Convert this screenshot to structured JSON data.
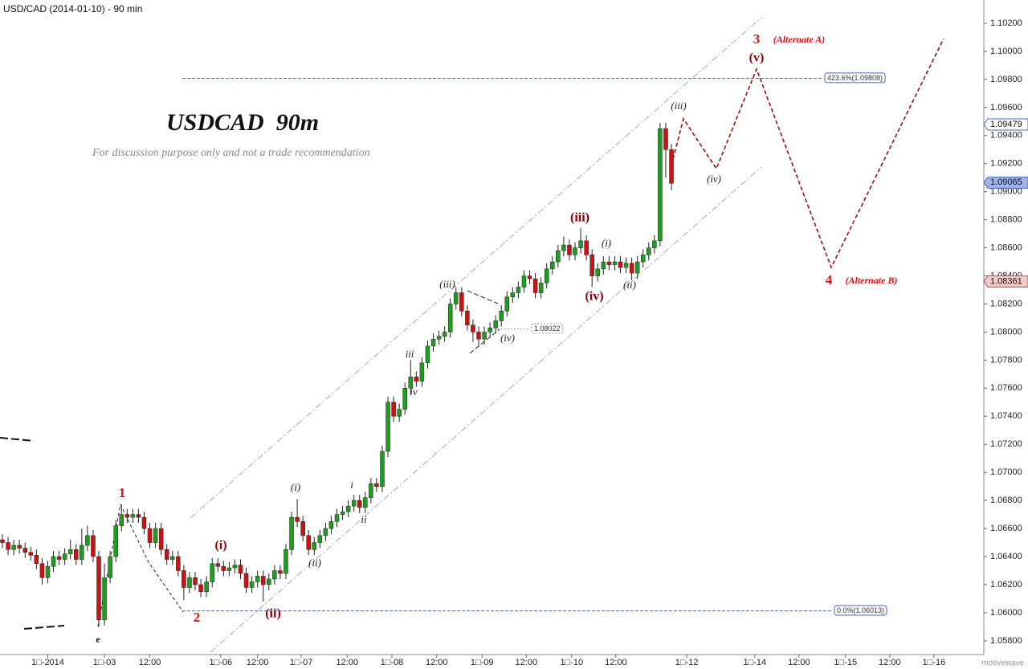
{
  "chart_data": {
    "type": "candlestick",
    "title": "USD/CAD (2014-01-10) - 90 min",
    "heading": "USDCAD  90m",
    "subtitle": "For discussion purpose only and not a trade recommendation",
    "watermark": "motivewave",
    "up_color": "#1e9e1e",
    "down_color": "#cc1111",
    "x": [
      0,
      1,
      2,
      3,
      4,
      5,
      6,
      7,
      8,
      9,
      10,
      11,
      12,
      13,
      14,
      15,
      16,
      17,
      18,
      19,
      20,
      21,
      22,
      23,
      24,
      25,
      26,
      27,
      28,
      29,
      30,
      31,
      32,
      33,
      34,
      35,
      36,
      37,
      38,
      39,
      40,
      41,
      42,
      43,
      44,
      45,
      46,
      47,
      48,
      49,
      50,
      51,
      52,
      53,
      54,
      55,
      56,
      57,
      58,
      59,
      60,
      61,
      62,
      63,
      64,
      65,
      66,
      67,
      68,
      69,
      70,
      71,
      72,
      73,
      74,
      75,
      76,
      77,
      78,
      79,
      80,
      81,
      82,
      83,
      84,
      85,
      86,
      87,
      88,
      89,
      90,
      91,
      92,
      93,
      94,
      95,
      96,
      97,
      98,
      99,
      100,
      101,
      102,
      103,
      104,
      105,
      106,
      107,
      108,
      109,
      110,
      111,
      112,
      113,
      114,
      115,
      116,
      117,
      118
    ],
    "open": [
      1.0652,
      1.065,
      1.0645,
      1.0648,
      1.0646,
      1.0643,
      1.0641,
      1.0635,
      1.0625,
      1.0633,
      1.064,
      1.0638,
      1.0642,
      1.0645,
      1.0638,
      1.0648,
      1.0655,
      1.064,
      1.0595,
      1.0625,
      1.064,
      1.0662,
      1.067,
      1.0668,
      1.067,
      1.0668,
      1.066,
      1.065,
      1.066,
      1.0645,
      1.0638,
      1.064,
      1.063,
      1.0618,
      1.0625,
      1.062,
      1.0615,
      1.0622,
      1.0635,
      1.0633,
      1.063,
      1.0632,
      1.0634,
      1.0628,
      1.0618,
      1.0622,
      1.0626,
      1.062,
      1.0624,
      1.063,
      1.0628,
      1.0645,
      1.0668,
      1.0665,
      1.0655,
      1.0645,
      1.065,
      1.0655,
      1.066,
      1.0665,
      1.067,
      1.0672,
      1.0676,
      1.068,
      1.0675,
      1.0682,
      1.0692,
      1.069,
      1.0715,
      1.075,
      1.074,
      1.0745,
      1.076,
      1.0768,
      1.0765,
      1.0778,
      1.079,
      1.0795,
      1.0797,
      1.08,
      1.082,
      1.0828,
      1.0815,
      1.0805,
      1.08,
      1.0795,
      1.08,
      1.0803,
      1.0808,
      1.0815,
      1.0825,
      1.0828,
      1.0832,
      1.084,
      1.0838,
      1.0828,
      1.0835,
      1.0845,
      1.085,
      1.0858,
      1.0862,
      1.0855,
      1.086,
      1.0865,
      1.0855,
      1.084,
      1.0845,
      1.085,
      1.0848,
      1.085,
      1.0846,
      1.0849,
      1.0842,
      1.085,
      1.0855,
      1.086,
      1.0865,
      1.0945,
      1.093
    ],
    "high": [
      1.0656,
      1.0654,
      1.0652,
      1.0652,
      1.065,
      1.0647,
      1.0645,
      1.0639,
      1.0637,
      1.0644,
      1.0644,
      1.0646,
      1.0652,
      1.0649,
      1.066,
      1.0662,
      1.0659,
      1.0644,
      1.0635,
      1.0644,
      1.0666,
      1.0677,
      1.0674,
      1.0674,
      1.0674,
      1.0672,
      1.0664,
      1.0664,
      1.0664,
      1.0649,
      1.0644,
      1.0644,
      1.0634,
      1.0629,
      1.0629,
      1.0624,
      1.0626,
      1.0639,
      1.0639,
      1.0637,
      1.0636,
      1.0638,
      1.0638,
      1.0632,
      1.0626,
      1.063,
      1.063,
      1.0628,
      1.0634,
      1.0634,
      1.0649,
      1.0672,
      1.0681,
      1.0669,
      1.0659,
      1.0654,
      1.0659,
      1.0664,
      1.0669,
      1.0674,
      1.0676,
      1.068,
      1.0684,
      1.0684,
      1.0686,
      1.0696,
      1.0696,
      1.0719,
      1.0754,
      1.0754,
      1.0749,
      1.0764,
      1.078,
      1.0772,
      1.0782,
      1.0794,
      1.0799,
      1.0801,
      1.0804,
      1.0824,
      1.0832,
      1.0832,
      1.0819,
      1.0809,
      1.0804,
      1.0804,
      1.0807,
      1.0812,
      1.0819,
      1.0829,
      1.0832,
      1.0836,
      1.0844,
      1.0844,
      1.0842,
      1.0839,
      1.0849,
      1.0854,
      1.0862,
      1.0868,
      1.0866,
      1.0864,
      1.0874,
      1.0869,
      1.0859,
      1.0849,
      1.0854,
      1.0854,
      1.0854,
      1.0854,
      1.0853,
      1.0853,
      1.0854,
      1.0859,
      1.0864,
      1.0869,
      1.0949,
      1.0949,
      1.0934
    ],
    "low": [
      1.0646,
      1.0641,
      1.0641,
      1.0642,
      1.0639,
      1.0637,
      1.0631,
      1.062,
      1.0621,
      1.0629,
      1.0634,
      1.0634,
      1.0638,
      1.0634,
      1.0634,
      1.0644,
      1.0636,
      1.059,
      1.0591,
      1.0621,
      1.0636,
      1.0658,
      1.0664,
      1.0664,
      1.0664,
      1.0656,
      1.0646,
      1.0646,
      1.0641,
      1.0634,
      1.0634,
      1.0626,
      1.0609,
      1.0614,
      1.0616,
      1.0611,
      1.0611,
      1.0618,
      1.0629,
      1.0626,
      1.0626,
      1.0628,
      1.0624,
      1.0614,
      1.0614,
      1.0618,
      1.0608,
      1.0616,
      1.062,
      1.0624,
      1.0624,
      1.0641,
      1.0661,
      1.0651,
      1.0641,
      1.0641,
      1.0646,
      1.0651,
      1.0656,
      1.0661,
      1.0666,
      1.0668,
      1.0672,
      1.0671,
      1.0671,
      1.0678,
      1.0686,
      1.0686,
      1.0711,
      1.0736,
      1.0736,
      1.0741,
      1.0756,
      1.0761,
      1.0761,
      1.0774,
      1.0786,
      1.0791,
      1.0793,
      1.0796,
      1.0816,
      1.0811,
      1.0801,
      1.0793,
      1.079,
      1.0791,
      1.0796,
      1.0799,
      1.0804,
      1.0811,
      1.0821,
      1.0824,
      1.0828,
      1.0834,
      1.0824,
      1.0824,
      1.0831,
      1.0841,
      1.0846,
      1.0854,
      1.0851,
      1.0851,
      1.0856,
      1.0851,
      1.0832,
      1.0836,
      1.0841,
      1.0844,
      1.0844,
      1.0842,
      1.0842,
      1.0837,
      1.0838,
      1.0846,
      1.0851,
      1.0856,
      1.0861,
      1.091,
      1.0901
    ],
    "close": [
      1.065,
      1.0645,
      1.0648,
      1.0646,
      1.0643,
      1.0641,
      1.0635,
      1.0625,
      1.0633,
      1.064,
      1.0638,
      1.0642,
      1.0645,
      1.0638,
      1.0648,
      1.0655,
      1.064,
      1.0595,
      1.0625,
      1.064,
      1.0662,
      1.067,
      1.0668,
      1.067,
      1.0668,
      1.066,
      1.065,
      1.066,
      1.0645,
      1.0638,
      1.064,
      1.063,
      1.0618,
      1.0625,
      1.062,
      1.0615,
      1.0622,
      1.0635,
      1.0633,
      1.063,
      1.0632,
      1.0634,
      1.0628,
      1.0618,
      1.0622,
      1.0626,
      1.062,
      1.0624,
      1.063,
      1.0628,
      1.0645,
      1.0668,
      1.0665,
      1.0655,
      1.0645,
      1.065,
      1.0655,
      1.066,
      1.0665,
      1.067,
      1.0672,
      1.0676,
      1.068,
      1.0675,
      1.0682,
      1.0692,
      1.069,
      1.0715,
      1.075,
      1.074,
      1.0745,
      1.076,
      1.0768,
      1.0765,
      1.0778,
      1.079,
      1.0795,
      1.0797,
      1.08,
      1.082,
      1.0828,
      1.0815,
      1.0805,
      1.08,
      1.0795,
      1.08,
      1.0803,
      1.0808,
      1.0815,
      1.0825,
      1.0828,
      1.0832,
      1.084,
      1.0838,
      1.0828,
      1.0835,
      1.0845,
      1.085,
      1.0858,
      1.0862,
      1.0855,
      1.086,
      1.0865,
      1.0855,
      1.084,
      1.0845,
      1.085,
      1.0848,
      1.085,
      1.0846,
      1.0849,
      1.0842,
      1.085,
      1.0855,
      1.086,
      1.0865,
      1.0945,
      1.093,
      1.0906
    ],
    "xlim": [
      -0.425,
      173.1
    ],
    "xticks": [
      {
        "value": 8,
        "label": "1□-2014"
      },
      {
        "value": 18,
        "label": "1□-03"
      },
      {
        "value": 26,
        "label": "12:00"
      },
      {
        "value": 38.5,
        "label": "1□-06"
      },
      {
        "value": 45,
        "label": "12:00"
      },
      {
        "value": 52.7,
        "label": "1□-07"
      },
      {
        "value": 60.8,
        "label": "12:00"
      },
      {
        "value": 68.7,
        "label": "1□-08"
      },
      {
        "value": 76.6,
        "label": "12:00"
      },
      {
        "value": 84.6,
        "label": "1□-09"
      },
      {
        "value": 92.4,
        "label": "12:00"
      },
      {
        "value": 100.4,
        "label": "1□-10"
      },
      {
        "value": 108.2,
        "label": "12:00"
      },
      {
        "value": 120.7,
        "label": "1□-12"
      },
      {
        "value": 132.7,
        "label": "1□-14"
      },
      {
        "value": 140.5,
        "label": "12:00"
      },
      {
        "value": 148.7,
        "label": "1□-15"
      },
      {
        "value": 156.5,
        "label": "12:00"
      },
      {
        "value": 164.3,
        "label": "1□-16"
      }
    ],
    "ylim": [
      1.05702,
      1.10366
    ],
    "yticks": [
      {
        "value": 1.058,
        "label": "1.05800"
      },
      {
        "value": 1.06,
        "label": "1.06000"
      },
      {
        "value": 1.062,
        "label": "1.06200"
      },
      {
        "value": 1.064,
        "label": "1.06400"
      },
      {
        "value": 1.066,
        "label": "1.06600"
      },
      {
        "value": 1.068,
        "label": "1.06800"
      },
      {
        "value": 1.07,
        "label": "1.07000"
      },
      {
        "value": 1.072,
        "label": "1.07200"
      },
      {
        "value": 1.074,
        "label": "1.07400"
      },
      {
        "value": 1.076,
        "label": "1.07600"
      },
      {
        "value": 1.078,
        "label": "1.07800"
      },
      {
        "value": 1.08,
        "label": "1.08000"
      },
      {
        "value": 1.082,
        "label": "1.08200"
      },
      {
        "value": 1.084,
        "label": "1.08400"
      },
      {
        "value": 1.086,
        "label": "1.08600"
      },
      {
        "value": 1.088,
        "label": "1.08800"
      },
      {
        "value": 1.09,
        "label": "1.09000"
      },
      {
        "value": 1.092,
        "label": "1.09200"
      },
      {
        "value": 1.094,
        "label": "1.09400"
      },
      {
        "value": 1.096,
        "label": "1.09600"
      },
      {
        "value": 1.098,
        "label": "1.09800"
      },
      {
        "value": 1.1,
        "label": "1.10000"
      },
      {
        "value": 1.102,
        "label": "1.10200"
      }
    ],
    "levels": [
      {
        "value": 1.09808,
        "label": "423.6%(1.09808)"
      },
      {
        "value": 1.06013,
        "label": "0.0%(1.06013)"
      },
      1.08022
    ],
    "price_markers": [
      1.09479,
      1.09065,
      1.08361
    ],
    "annotations": [
      "1",
      "2",
      "e",
      "(i)",
      "(ii)",
      "(i)",
      "(ii)",
      "i",
      "ii",
      "iii",
      "iv",
      "(iii)",
      "(iv)",
      "(iii)",
      "(iv)",
      "(i)",
      "(ii)",
      "(iii)",
      "(iv)",
      "3",
      "(Alternate A)",
      "(v)",
      "4",
      "(Alternate B)"
    ]
  }
}
